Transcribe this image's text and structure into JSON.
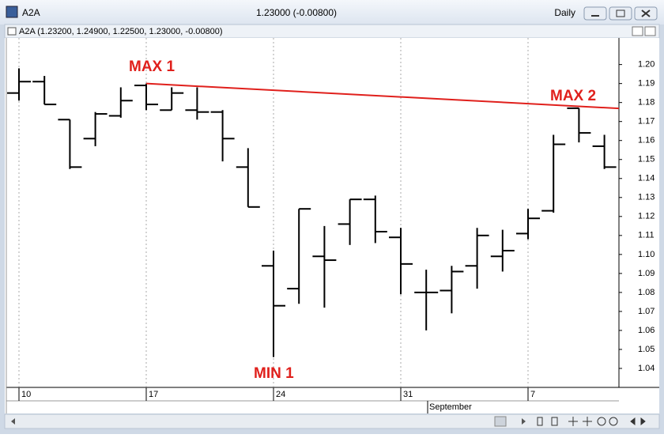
{
  "window": {
    "symbol": "A2A",
    "quote": "1.23000 (-0.00800)",
    "period": "Daily"
  },
  "chart_data": {
    "type": "ohlc",
    "title": "A2A (1.23200, 1.24900, 1.22500, 1.23000, -0.00800)",
    "categories": [
      "10",
      null,
      null,
      null,
      null,
      "17",
      null,
      null,
      null,
      null,
      "24",
      null,
      null,
      null,
      null,
      "31",
      null,
      null,
      null,
      null,
      "7",
      null,
      null,
      null
    ],
    "month_label": "September",
    "open": [
      1.185,
      1.191,
      1.171,
      1.161,
      1.173,
      1.189,
      1.176,
      1.176,
      1.175,
      1.146,
      1.094,
      1.082,
      1.099,
      1.116,
      1.129,
      1.109,
      1.08,
      1.081,
      1.094,
      1.099,
      1.111,
      1.123,
      1.177,
      1.157
    ],
    "high": [
      1.198,
      1.194,
      1.171,
      1.175,
      1.188,
      1.19,
      1.188,
      1.188,
      1.176,
      1.156,
      1.102,
      1.124,
      1.115,
      1.129,
      1.131,
      1.114,
      1.092,
      1.094,
      1.114,
      1.113,
      1.124,
      1.163,
      1.177,
      1.163
    ],
    "low": [
      1.181,
      1.179,
      1.145,
      1.157,
      1.172,
      1.176,
      1.176,
      1.171,
      1.149,
      1.125,
      1.046,
      1.074,
      1.072,
      1.105,
      1.106,
      1.079,
      1.06,
      1.069,
      1.082,
      1.091,
      1.108,
      1.122,
      1.159,
      1.145
    ],
    "close": [
      1.191,
      1.179,
      1.146,
      1.174,
      1.181,
      1.179,
      1.185,
      1.175,
      1.161,
      1.125,
      1.073,
      1.124,
      1.097,
      1.129,
      1.112,
      1.095,
      1.08,
      1.091,
      1.11,
      1.102,
      1.119,
      1.158,
      1.164,
      1.146
    ],
    "color": "#000000",
    "trendline": {
      "color": "#e0201c",
      "values": [
        null,
        null,
        null,
        null,
        null,
        1.19,
        null,
        null,
        null,
        null,
        null,
        null,
        null,
        null,
        null,
        null,
        null,
        null,
        null,
        null,
        null,
        null,
        1.178,
        null
      ]
    },
    "annotations": [
      "MAX 1",
      "MIN 1",
      "MAX 2"
    ],
    "annotation_color": "#e0201c",
    "ylim": [
      1.03,
      1.214
    ],
    "yticks": [
      1.04,
      1.05,
      1.06,
      1.07,
      1.08,
      1.09,
      {
        "value": 1.1,
        "label": "1.10"
      },
      1.11,
      1.12,
      1.13,
      1.14,
      1.15,
      1.16,
      1.17,
      1.18,
      1.19,
      {
        "value": 1.2,
        "label": "1.20"
      }
    ],
    "xgrid": true
  }
}
